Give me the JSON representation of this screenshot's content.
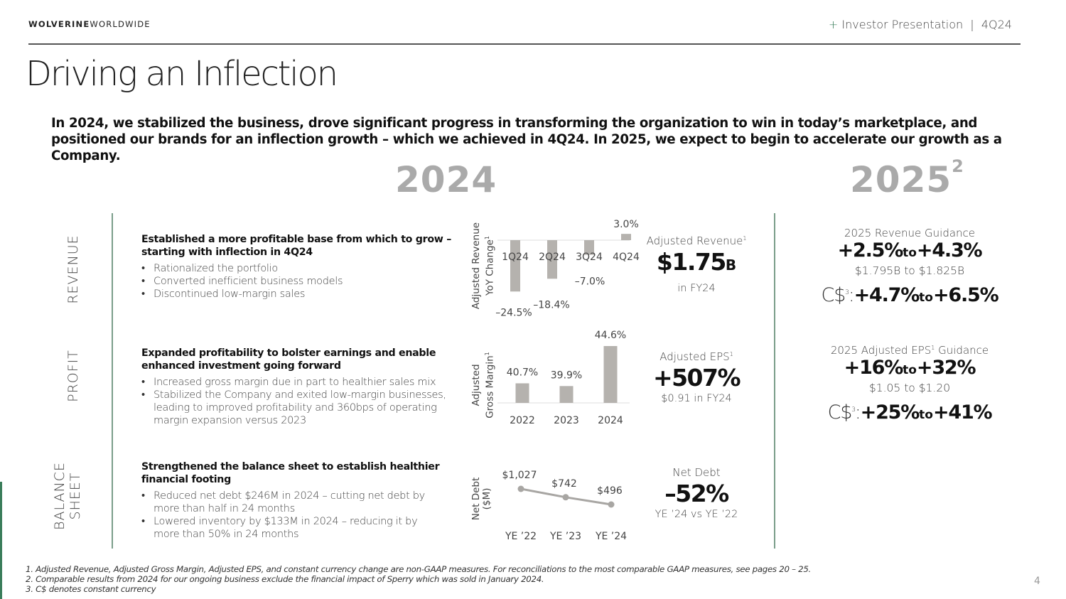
{
  "header": {
    "brand_bold": "WOLVERINE",
    "brand_rest": "WORLDWIDE",
    "plus": "+",
    "presentation": "Investor Presentation",
    "separator": "|",
    "period": "4Q24"
  },
  "title": "Driving an Inflection",
  "intro": "In 2024, we stabilized the business, drove significant progress in transforming the organization to win in today’s marketplace, and positioned our brands for an inflection growth – which we achieved in 4Q24.  In 2025, we expect to begin to accelerate our growth as a Company.",
  "years": {
    "current": "2024",
    "next": "2025",
    "next_sup": "2"
  },
  "sections": {
    "revenue": {
      "label": "REVENUE",
      "heading": "Established a more profitable base from which to grow – starting with inflection in 4Q24",
      "bullets": [
        "Rationalized the portfolio",
        "Converted inefficient business models",
        "Discontinued low-margin sales"
      ],
      "axis_label_1": "Adjusted Revenue",
      "axis_label_2": "YoY Change",
      "axis_sup": "1",
      "kpi": {
        "label": "Adjusted Revenue",
        "sup": "1",
        "value": "$1.75",
        "unit": "B",
        "sub": "in FY24"
      }
    },
    "profit": {
      "label": "PROFIT",
      "heading": "Expanded profitability to bolster earnings and enable enhanced investment going forward",
      "bullets": [
        "Increased gross margin due in part to healthier sales mix",
        "Stabilized the Company and exited low-margin businesses, leading to improved profitability and 360bps of operating margin expansion versus 2023"
      ],
      "axis_label_1": "Adjusted",
      "axis_label_2": "Gross Margin",
      "axis_sup": "1",
      "kpi": {
        "label": "Adjusted EPS",
        "sup": "1",
        "value": "+507%",
        "sub": "$0.91 in FY24"
      }
    },
    "balance": {
      "label_1": "BALANCE",
      "label_2": "SHEET",
      "heading": "Strengthened the balance sheet to establish healthier financial footing",
      "bullets": [
        "Reduced net debt $246M in 2024 – cutting net debt by more than half in 24 months",
        "Lowered inventory by $133M in 2024 – reducing it by more than 50% in 24 months"
      ],
      "axis_label_1": "Net Debt",
      "axis_label_2": "($M)",
      "kpi": {
        "label": "Net Debt",
        "value": "–52%",
        "sub": "YE ’24 vs YE ’22"
      }
    }
  },
  "guidance": {
    "revenue": {
      "label": "2025 Revenue Guidance",
      "low": "+2.5%",
      "to": "to",
      "high": "+4.3%",
      "range": "$1.795B to $1.825B",
      "cc_prefix": "C$",
      "cc_sup": "3",
      "cc_colon": ":",
      "cc_low": "+4.7%",
      "cc_high": "+6.5%"
    },
    "eps": {
      "label_pre": "2025 Adjusted EPS",
      "label_sup": "1",
      "label_post": " Guidance",
      "low": "+16%",
      "to": "to",
      "high": "+32%",
      "range": "$1.05 to $1.20",
      "cc_prefix": "C$",
      "cc_sup": "3",
      "cc_colon": ":",
      "cc_low": "+25%",
      "cc_high": "+41%"
    }
  },
  "chart_data": [
    {
      "type": "bar",
      "title": "Adjusted Revenue YoY Change",
      "categories": [
        "1Q24",
        "2Q24",
        "3Q24",
        "4Q24"
      ],
      "values": [
        -24.5,
        -18.4,
        -7.0,
        3.0
      ],
      "labels": [
        "-24.5%",
        "-18.4%",
        "-7.0%",
        "3.0%"
      ],
      "ylim": [
        -26,
        4
      ]
    },
    {
      "type": "bar",
      "title": "Adjusted Gross Margin",
      "categories": [
        "2022",
        "2023",
        "2024"
      ],
      "values": [
        40.7,
        39.9,
        44.6
      ],
      "labels": [
        "40.7%",
        "39.9%",
        "44.6%"
      ],
      "ylim": [
        35,
        45
      ]
    },
    {
      "type": "line",
      "title": "Net Debt ($M)",
      "categories": [
        "YE '22",
        "YE '23",
        "YE '24"
      ],
      "values": [
        1027,
        742,
        496
      ],
      "labels": [
        "$1,027",
        "$742",
        "$496"
      ],
      "ylim": [
        0,
        1100
      ]
    }
  ],
  "footnotes": [
    "1. Adjusted Revenue, Adjusted Gross Margin, Adjusted EPS, and constant currency change are non-GAAP measures. For reconciliations to the most comparable GAAP measures, see pages 20 – 25.",
    "2. Comparable results from 2024 for our ongoing business exclude the financial impact of Sperry which was sold in January 2024.",
    "3. C$ denotes constant currency"
  ],
  "page_number": "4",
  "colors": {
    "bar": "#b5b2ae",
    "line": "#a8a6a3",
    "accent": "#3a7d5a",
    "rule": "#7a9e8a"
  }
}
